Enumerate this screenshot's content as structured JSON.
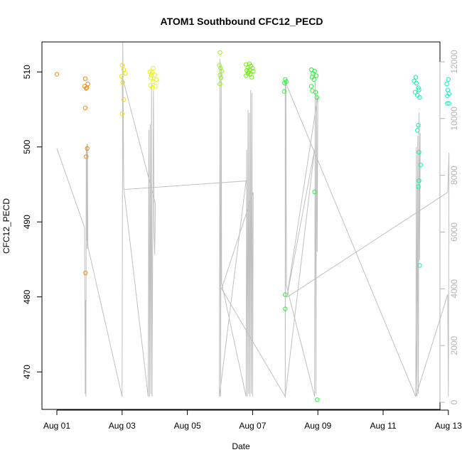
{
  "chart_data": {
    "type": "scatter",
    "title": "ATOM1 Southbound CFC12_PECD",
    "xlabel": "Date",
    "ylabel": "CFC12_PECD",
    "x_unit": "day of August",
    "xlim": [
      1,
      13.2
    ],
    "ylim": [
      465,
      514
    ],
    "y2lim": [
      -250,
      12700
    ],
    "x_ticks": [
      {
        "value": 1,
        "label": "Aug 01"
      },
      {
        "value": 3,
        "label": "Aug 03"
      },
      {
        "value": 5,
        "label": "Aug 05"
      },
      {
        "value": 7,
        "label": "Aug 07"
      },
      {
        "value": 9,
        "label": "Aug 09"
      },
      {
        "value": 11,
        "label": "Aug 11"
      },
      {
        "value": 13,
        "label": "Aug 13"
      }
    ],
    "y_ticks": [
      470,
      480,
      490,
      500,
      510
    ],
    "y2_ticks": [
      0,
      2000,
      4000,
      6000,
      8000,
      10000,
      12000
    ],
    "grid": false,
    "colors": {
      "track_line": "#c0c0c0",
      "right_axis": "#b3b3b3"
    },
    "points": [
      {
        "x": 1.0,
        "y": 509.7,
        "color": "#f28c17"
      },
      {
        "x": 1.87,
        "y": 509.1,
        "color": "#f28c17"
      },
      {
        "x": 1.85,
        "y": 508.1,
        "color": "#f28c17"
      },
      {
        "x": 1.9,
        "y": 507.8,
        "color": "#f28c17"
      },
      {
        "x": 1.95,
        "y": 508.4,
        "color": "#f28c17"
      },
      {
        "x": 1.92,
        "y": 507.9,
        "color": "#f28c17"
      },
      {
        "x": 1.87,
        "y": 505.2,
        "color": "#f28c17"
      },
      {
        "x": 1.93,
        "y": 499.8,
        "color": "#f28c17"
      },
      {
        "x": 1.9,
        "y": 498.7,
        "color": "#f28c17"
      },
      {
        "x": 1.88,
        "y": 483.2,
        "color": "#f28c17"
      },
      {
        "x": 3.0,
        "y": 510.9,
        "color": "#f2dd12"
      },
      {
        "x": 3.05,
        "y": 510.3,
        "color": "#f2dd12"
      },
      {
        "x": 3.1,
        "y": 509.8,
        "color": "#f2dd12"
      },
      {
        "x": 2.98,
        "y": 509.4,
        "color": "#f2dd12"
      },
      {
        "x": 3.02,
        "y": 508.6,
        "color": "#f2dd12"
      },
      {
        "x": 3.05,
        "y": 506.3,
        "color": "#f2dd12"
      },
      {
        "x": 3.0,
        "y": 504.4,
        "color": "#f2dd12"
      },
      {
        "x": 3.85,
        "y": 510.0,
        "color": "#e8f212"
      },
      {
        "x": 3.9,
        "y": 509.6,
        "color": "#e8f212"
      },
      {
        "x": 3.95,
        "y": 510.5,
        "color": "#e8f212"
      },
      {
        "x": 3.88,
        "y": 509.2,
        "color": "#e8f212"
      },
      {
        "x": 3.92,
        "y": 509.9,
        "color": "#e8f212"
      },
      {
        "x": 4.0,
        "y": 509.6,
        "color": "#e8f212"
      },
      {
        "x": 4.05,
        "y": 509.0,
        "color": "#e8f212"
      },
      {
        "x": 3.95,
        "y": 508.7,
        "color": "#e8f212"
      },
      {
        "x": 3.87,
        "y": 508.2,
        "color": "#e8f212"
      },
      {
        "x": 3.93,
        "y": 507.9,
        "color": "#e8f212"
      },
      {
        "x": 4.02,
        "y": 508.1,
        "color": "#e8f212"
      },
      {
        "x": 6.0,
        "y": 512.6,
        "color": "#9cf212"
      },
      {
        "x": 5.98,
        "y": 510.9,
        "color": "#9cf212"
      },
      {
        "x": 6.02,
        "y": 510.5,
        "color": "#9cf212"
      },
      {
        "x": 6.05,
        "y": 510.1,
        "color": "#9cf212"
      },
      {
        "x": 6.0,
        "y": 509.6,
        "color": "#9cf212"
      },
      {
        "x": 6.03,
        "y": 509.2,
        "color": "#9cf212"
      },
      {
        "x": 6.0,
        "y": 508.4,
        "color": "#9cf212"
      },
      {
        "x": 6.8,
        "y": 511.0,
        "color": "#70f212"
      },
      {
        "x": 6.85,
        "y": 510.6,
        "color": "#70f212"
      },
      {
        "x": 6.9,
        "y": 511.1,
        "color": "#70f212"
      },
      {
        "x": 6.82,
        "y": 510.2,
        "color": "#70f212"
      },
      {
        "x": 6.95,
        "y": 510.8,
        "color": "#70f212"
      },
      {
        "x": 7.0,
        "y": 510.5,
        "color": "#70f212"
      },
      {
        "x": 6.88,
        "y": 510.0,
        "color": "#70f212"
      },
      {
        "x": 6.93,
        "y": 509.7,
        "color": "#70f212"
      },
      {
        "x": 7.02,
        "y": 510.1,
        "color": "#70f212"
      },
      {
        "x": 6.8,
        "y": 509.5,
        "color": "#70f212"
      },
      {
        "x": 6.97,
        "y": 509.3,
        "color": "#70f212"
      },
      {
        "x": 6.86,
        "y": 509.8,
        "color": "#70f212"
      },
      {
        "x": 6.91,
        "y": 510.3,
        "color": "#70f212"
      },
      {
        "x": 8.0,
        "y": 509.0,
        "color": "#2ef23d"
      },
      {
        "x": 8.03,
        "y": 508.7,
        "color": "#2ef23d"
      },
      {
        "x": 7.98,
        "y": 508.5,
        "color": "#2ef23d"
      },
      {
        "x": 7.97,
        "y": 507.4,
        "color": "#2ef23d"
      },
      {
        "x": 8.8,
        "y": 510.3,
        "color": "#2ef23d"
      },
      {
        "x": 8.85,
        "y": 509.8,
        "color": "#2ef23d"
      },
      {
        "x": 8.9,
        "y": 510.1,
        "color": "#2ef23d"
      },
      {
        "x": 8.82,
        "y": 509.3,
        "color": "#2ef23d"
      },
      {
        "x": 8.95,
        "y": 509.5,
        "color": "#2ef23d"
      },
      {
        "x": 8.88,
        "y": 509.0,
        "color": "#2ef23d"
      },
      {
        "x": 8.8,
        "y": 508.1,
        "color": "#2ef23d"
      },
      {
        "x": 8.83,
        "y": 507.5,
        "color": "#2ef23d"
      },
      {
        "x": 8.93,
        "y": 507.3,
        "color": "#2ef23d"
      },
      {
        "x": 8.97,
        "y": 506.6,
        "color": "#2ef23d"
      },
      {
        "x": 8.9,
        "y": 494.0,
        "color": "#2ef23d"
      },
      {
        "x": 8.0,
        "y": 480.3,
        "color": "#2ef23d"
      },
      {
        "x": 8.0,
        "y": 478.4,
        "color": "#2ef23d"
      },
      {
        "x": 8.98,
        "y": 466.3,
        "color": "#2ef23d"
      },
      {
        "x": 12.0,
        "y": 509.3,
        "color": "#12f2a8"
      },
      {
        "x": 11.95,
        "y": 508.8,
        "color": "#12f2a8"
      },
      {
        "x": 12.02,
        "y": 508.5,
        "color": "#12f2a8"
      },
      {
        "x": 12.08,
        "y": 507.9,
        "color": "#12f2a8"
      },
      {
        "x": 12.1,
        "y": 507.6,
        "color": "#12f2a8"
      },
      {
        "x": 11.98,
        "y": 507.3,
        "color": "#12f2a8"
      },
      {
        "x": 12.05,
        "y": 506.9,
        "color": "#12f2a8"
      },
      {
        "x": 12.12,
        "y": 506.6,
        "color": "#12f2a8"
      },
      {
        "x": 12.08,
        "y": 502.9,
        "color": "#12f2a8"
      },
      {
        "x": 12.05,
        "y": 502.2,
        "color": "#12f2a8"
      },
      {
        "x": 12.1,
        "y": 499.3,
        "color": "#12f2a8"
      },
      {
        "x": 12.15,
        "y": 497.6,
        "color": "#12f2a8"
      },
      {
        "x": 12.1,
        "y": 495.5,
        "color": "#12f2a8"
      },
      {
        "x": 12.08,
        "y": 494.7,
        "color": "#12f2a8"
      },
      {
        "x": 12.12,
        "y": 484.2,
        "color": "#12f2a8"
      },
      {
        "x": 13.0,
        "y": 509.0,
        "color": "#12f2c8"
      },
      {
        "x": 12.95,
        "y": 508.4,
        "color": "#12f2c8"
      },
      {
        "x": 12.98,
        "y": 507.6,
        "color": "#12f2c8"
      },
      {
        "x": 13.02,
        "y": 507.1,
        "color": "#12f2c8"
      },
      {
        "x": 12.97,
        "y": 506.8,
        "color": "#12f2c8"
      },
      {
        "x": 12.97,
        "y": 505.8,
        "color": "#12f2c8"
      },
      {
        "x": 13.02,
        "y": 505.8,
        "color": "#12f2c8"
      }
    ],
    "track": [
      [
        1.0,
        8950
      ],
      [
        1.85,
        6150
      ],
      [
        1.87,
        300
      ],
      [
        1.88,
        3600
      ],
      [
        1.89,
        200
      ],
      [
        1.9,
        9000
      ],
      [
        1.91,
        5700
      ],
      [
        1.92,
        9100
      ],
      [
        1.93,
        5400
      ],
      [
        1.94,
        9100
      ],
      [
        1.95,
        5500
      ],
      [
        3.0,
        200
      ],
      [
        3.02,
        12700
      ],
      [
        3.05,
        7550
      ],
      [
        3.8,
        200
      ],
      [
        3.82,
        9600
      ],
      [
        3.84,
        200
      ],
      [
        3.86,
        9800
      ],
      [
        3.88,
        300
      ],
      [
        3.9,
        11200
      ],
      [
        3.92,
        200
      ],
      [
        3.94,
        6200
      ],
      [
        3.96,
        11000
      ],
      [
        3.98,
        6000
      ],
      [
        4.0,
        5200
      ],
      [
        4.02,
        7000
      ],
      [
        3.0,
        11500
      ],
      [
        3.05,
        7500
      ],
      [
        6.8,
        7800
      ],
      [
        5.98,
        200
      ],
      [
        6.0,
        12100
      ],
      [
        6.02,
        200
      ],
      [
        6.04,
        11900
      ],
      [
        6.05,
        4200
      ],
      [
        6.8,
        200
      ],
      [
        6.82,
        8900
      ],
      [
        6.84,
        200
      ],
      [
        6.86,
        10300
      ],
      [
        6.88,
        300
      ],
      [
        6.9,
        10200
      ],
      [
        6.92,
        200
      ],
      [
        6.94,
        11000
      ],
      [
        6.96,
        300
      ],
      [
        6.98,
        10900
      ],
      [
        7.0,
        200
      ],
      [
        7.02,
        7400
      ],
      [
        6.05,
        4000
      ],
      [
        8.0,
        200
      ],
      [
        8.02,
        11400
      ],
      [
        8.04,
        4100
      ],
      [
        8.9,
        200
      ],
      [
        8.92,
        11300
      ],
      [
        8.94,
        300
      ],
      [
        8.96,
        10800
      ],
      [
        8.98,
        5300
      ],
      [
        9.0,
        10800
      ],
      [
        8.05,
        3700
      ],
      [
        8.9,
        8900
      ],
      [
        8.0,
        200
      ],
      [
        8.0,
        11300
      ],
      [
        12.0,
        200
      ],
      [
        12.02,
        9000
      ],
      [
        12.04,
        200
      ],
      [
        12.06,
        9400
      ],
      [
        12.08,
        300
      ],
      [
        12.1,
        10200
      ],
      [
        12.12,
        5000
      ],
      [
        12.14,
        9500
      ],
      [
        12.0,
        200
      ],
      [
        12.98,
        3800
      ],
      [
        13.0,
        200
      ],
      [
        13.02,
        8800
      ],
      [
        12.98,
        7400
      ],
      [
        8.05,
        3700
      ]
    ]
  }
}
